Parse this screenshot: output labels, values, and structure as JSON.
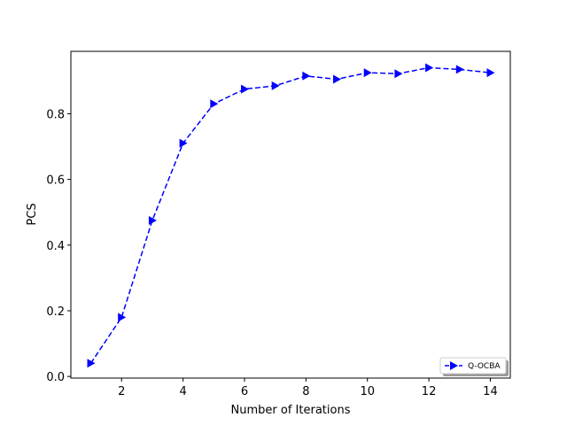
{
  "chart_data": {
    "type": "line",
    "title": "",
    "xlabel": "Number of Iterations",
    "ylabel": "PCS",
    "xlim": [
      0.35,
      14.65
    ],
    "ylim": [
      -0.005,
      0.99
    ],
    "xticks": [
      2,
      4,
      6,
      8,
      10,
      12,
      14
    ],
    "yticks": [
      0.0,
      0.2,
      0.4,
      0.6,
      0.8
    ],
    "ytick_labels": [
      "0.0",
      "0.2",
      "0.4",
      "0.6",
      "0.8"
    ],
    "grid": false,
    "legend_position": "lower-right",
    "series": [
      {
        "name": "Q-OCBA",
        "color": "#0000ff",
        "line_style": "dashed",
        "marker": "right-triangle",
        "x": [
          1,
          2,
          3,
          4,
          5,
          6,
          7,
          8,
          9,
          10,
          11,
          12,
          13,
          14
        ],
        "y": [
          0.04,
          0.18,
          0.475,
          0.71,
          0.83,
          0.875,
          0.885,
          0.915,
          0.905,
          0.925,
          0.922,
          0.94,
          0.935,
          0.925
        ]
      }
    ]
  }
}
